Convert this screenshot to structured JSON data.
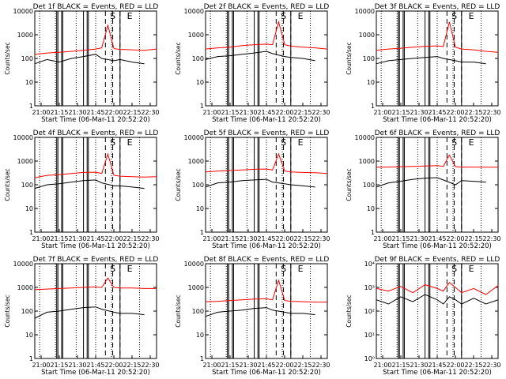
{
  "chart_data": [
    {
      "type": "line",
      "title": "Det 1f BLACK = Events, RED = LLD",
      "xlabel": "Start Time (06-Mar-11 20:52:20)",
      "ylabel": "Counts/sec",
      "y_scale": "log",
      "ylim": [
        1,
        10000
      ],
      "y_ticks": [
        "1",
        "10",
        "100",
        "1000",
        "10000"
      ],
      "x_ticks": [
        "21:00",
        "21:15",
        "21:30",
        "21:45",
        "22:00",
        "22:15",
        "22:30"
      ],
      "markers": [
        "S",
        "E"
      ],
      "x": [
        0,
        0.1,
        0.2,
        0.3,
        0.4,
        0.5,
        0.55,
        0.6,
        0.65,
        0.7,
        0.8,
        0.9,
        1
      ],
      "series": [
        {
          "values": [
            150,
            170,
            180,
            200,
            220,
            250,
            280,
            2500,
            260,
            240,
            230,
            220,
            250
          ],
          "color": "#ff0000"
        },
        {
          "values": [
            60,
            90,
            70,
            100,
            120,
            150,
            100,
            0,
            80,
            90,
            70,
            60,
            0
          ],
          "color": "#000000"
        }
      ]
    },
    {
      "type": "line",
      "title": "Det 2f BLACK = Events, RED = LLD",
      "xlabel": "Start Time (06-Mar-11 20:52:20)",
      "ylabel": "Counts/sec",
      "y_scale": "log",
      "ylim": [
        1,
        10000
      ],
      "y_ticks": [
        "1",
        "10",
        "100",
        "1000",
        "10000"
      ],
      "x_ticks": [
        "21:00",
        "21:15",
        "21:30",
        "21:45",
        "22:00",
        "22:15",
        "22:30"
      ],
      "markers": [
        "S",
        "E"
      ],
      "x": [
        0,
        0.1,
        0.2,
        0.3,
        0.4,
        0.5,
        0.55,
        0.6,
        0.65,
        0.7,
        0.8,
        0.9,
        1
      ],
      "series": [
        {
          "values": [
            250,
            280,
            300,
            350,
            380,
            400,
            380,
            3500,
            380,
            330,
            300,
            280,
            250
          ],
          "color": "#ff0000"
        },
        {
          "values": [
            90,
            120,
            130,
            150,
            170,
            200,
            160,
            0,
            120,
            110,
            100,
            80,
            0
          ],
          "color": "#000000"
        }
      ]
    },
    {
      "type": "line",
      "title": "Det 3f BLACK = Events, RED = LLD",
      "xlabel": "Start Time (06-Mar-11 20:52:20)",
      "ylabel": "Counts/sec",
      "y_scale": "log",
      "ylim": [
        1,
        10000
      ],
      "y_ticks": [
        "1",
        "10",
        "100",
        "1000",
        "10000"
      ],
      "x_ticks": [
        "21:00",
        "21:15",
        "21:30",
        "21:45",
        "22:00",
        "22:15",
        "22:30"
      ],
      "markers": [
        "S",
        "E"
      ],
      "x": [
        0,
        0.1,
        0.2,
        0.3,
        0.4,
        0.5,
        0.55,
        0.6,
        0.65,
        0.7,
        0.8,
        0.9,
        1
      ],
      "series": [
        {
          "values": [
            220,
            250,
            270,
            300,
            320,
            340,
            320,
            3500,
            300,
            250,
            230,
            200,
            180
          ],
          "color": "#ff0000"
        },
        {
          "values": [
            60,
            80,
            90,
            100,
            110,
            120,
            100,
            0,
            80,
            70,
            70,
            60,
            0
          ],
          "color": "#000000"
        }
      ]
    },
    {
      "type": "line",
      "title": "Det 4f BLACK = Events, RED = LLD",
      "xlabel": "Start Time (06-Mar-11 20:52:20)",
      "ylabel": "Counts/sec",
      "y_scale": "log",
      "ylim": [
        1,
        10000
      ],
      "y_ticks": [
        "1",
        "10",
        "100",
        "1000",
        "10000"
      ],
      "x_ticks": [
        "21:00",
        "21:15",
        "21:30",
        "21:45",
        "22:00",
        "22:15",
        "22:30"
      ],
      "markers": [
        "S",
        "E"
      ],
      "x": [
        0,
        0.1,
        0.2,
        0.3,
        0.4,
        0.5,
        0.55,
        0.6,
        0.65,
        0.7,
        0.8,
        0.9,
        1
      ],
      "series": [
        {
          "values": [
            200,
            250,
            270,
            300,
            330,
            340,
            300,
            2000,
            250,
            230,
            220,
            210,
            220
          ],
          "color": "#ff0000"
        },
        {
          "values": [
            70,
            100,
            110,
            130,
            150,
            160,
            120,
            0,
            90,
            90,
            80,
            70,
            0
          ],
          "color": "#000000"
        }
      ]
    },
    {
      "type": "line",
      "title": "Det 5f BLACK = Events, RED = LLD",
      "xlabel": "Start Time (06-Mar-11 20:52:20)",
      "ylabel": "Counts/sec",
      "y_scale": "log",
      "ylim": [
        1,
        10000
      ],
      "y_ticks": [
        "1",
        "10",
        "100",
        "1000",
        "10000"
      ],
      "x_ticks": [
        "21:00",
        "21:15",
        "21:30",
        "21:45",
        "22:00",
        "22:15",
        "22:30"
      ],
      "markers": [
        "S",
        "E"
      ],
      "x": [
        0,
        0.1,
        0.2,
        0.3,
        0.4,
        0.5,
        0.55,
        0.6,
        0.65,
        0.7,
        0.8,
        0.9,
        1
      ],
      "series": [
        {
          "values": [
            350,
            380,
            400,
            420,
            450,
            460,
            420,
            2000,
            380,
            350,
            330,
            320,
            300
          ],
          "color": "#ff0000"
        },
        {
          "values": [
            80,
            120,
            130,
            150,
            160,
            170,
            130,
            0,
            110,
            100,
            90,
            80,
            0
          ],
          "color": "#000000"
        }
      ]
    },
    {
      "type": "line",
      "title": "Det 6f BLACK = Events, RED = LLD",
      "xlabel": "Start Time (06-Mar-11 20:52:20)",
      "ylabel": "Counts/sec",
      "y_scale": "log",
      "ylim": [
        1,
        10000
      ],
      "y_ticks": [
        "1",
        "10",
        "100",
        "1000",
        "10000"
      ],
      "x_ticks": [
        "21:00",
        "21:15",
        "21:30",
        "21:45",
        "22:00",
        "22:15",
        "22:30"
      ],
      "markers": [
        "S",
        "E"
      ],
      "x": [
        0,
        0.1,
        0.2,
        0.3,
        0.4,
        0.5,
        0.55,
        0.6,
        0.65,
        0.7,
        0.8,
        0.9,
        1
      ],
      "series": [
        {
          "values": [
            550,
            560,
            580,
            600,
            620,
            640,
            600,
            1800,
            580,
            560,
            560,
            550,
            550
          ],
          "color": "#ff0000"
        },
        {
          "values": [
            80,
            120,
            140,
            170,
            190,
            200,
            160,
            0,
            100,
            150,
            140,
            130,
            0
          ],
          "color": "#000000"
        }
      ]
    },
    {
      "type": "line",
      "title": "Det 7f BLACK = Events, RED = LLD",
      "xlabel": "Start Time (06-Mar-11 20:52:20)",
      "ylabel": "Counts/sec",
      "y_scale": "log",
      "ylim": [
        1,
        10000
      ],
      "y_ticks": [
        "1",
        "10",
        "100",
        "1000",
        "10000"
      ],
      "x_ticks": [
        "21:00",
        "21:15",
        "21:30",
        "21:45",
        "22:00",
        "22:15",
        "22:30"
      ],
      "markers": [
        "S",
        "E"
      ],
      "x": [
        0,
        0.1,
        0.2,
        0.3,
        0.4,
        0.5,
        0.55,
        0.6,
        0.65,
        0.7,
        0.8,
        0.9,
        1
      ],
      "series": [
        {
          "values": [
            800,
            850,
            900,
            950,
            1000,
            1050,
            1000,
            2500,
            1000,
            950,
            950,
            900,
            900
          ],
          "color": "#ff0000"
        },
        {
          "values": [
            50,
            90,
            100,
            120,
            140,
            150,
            120,
            0,
            90,
            80,
            80,
            70,
            0
          ],
          "color": "#000000"
        }
      ]
    },
    {
      "type": "line",
      "title": "Det 8f BLACK = Events, RED = LLD",
      "xlabel": "Start Time (06-Mar-11 20:52:20)",
      "ylabel": "Counts/sec",
      "y_scale": "log",
      "ylim": [
        1,
        10000
      ],
      "y_ticks": [
        "1",
        "10",
        "100",
        "1000",
        "10000"
      ],
      "x_ticks": [
        "21:00",
        "21:15",
        "21:30",
        "21:45",
        "22:00",
        "22:15",
        "22:30"
      ],
      "markers": [
        "S",
        "E"
      ],
      "x": [
        0,
        0.1,
        0.2,
        0.3,
        0.4,
        0.5,
        0.55,
        0.6,
        0.65,
        0.7,
        0.8,
        0.9,
        1
      ],
      "series": [
        {
          "values": [
            250,
            260,
            280,
            300,
            320,
            330,
            300,
            2000,
            280,
            260,
            250,
            240,
            240
          ],
          "color": "#ff0000"
        },
        {
          "values": [
            60,
            90,
            100,
            110,
            130,
            140,
            110,
            0,
            90,
            80,
            80,
            70,
            0
          ],
          "color": "#000000"
        }
      ]
    },
    {
      "type": "line",
      "title": "Det 9f BLACK = Events, RED = LLD",
      "xlabel": "Start Time (06-Mar-11 20:52:20)",
      "ylabel": "Counts/sec",
      "y_scale": "log",
      "ylim": [
        1,
        10000
      ],
      "y_ticks": [
        "10⁰",
        "10¹",
        "10²",
        "10³",
        "10⁴"
      ],
      "x_ticks": [
        "21:00",
        "21:15",
        "21:30",
        "21:45",
        "22:00",
        "22:15",
        "22:30"
      ],
      "markers": [
        "S",
        "E"
      ],
      "x": [
        0,
        0.1,
        0.2,
        0.3,
        0.4,
        0.5,
        0.55,
        0.6,
        0.65,
        0.7,
        0.8,
        0.9,
        1
      ],
      "series": [
        {
          "values": [
            900,
            700,
            1100,
            600,
            1300,
            900,
            700,
            1600,
            1000,
            600,
            900,
            500,
            1200
          ],
          "color": "#ff0000"
        },
        {
          "values": [
            300,
            200,
            400,
            250,
            500,
            300,
            200,
            400,
            300,
            200,
            350,
            200,
            300
          ],
          "color": "#000000"
        }
      ]
    }
  ]
}
